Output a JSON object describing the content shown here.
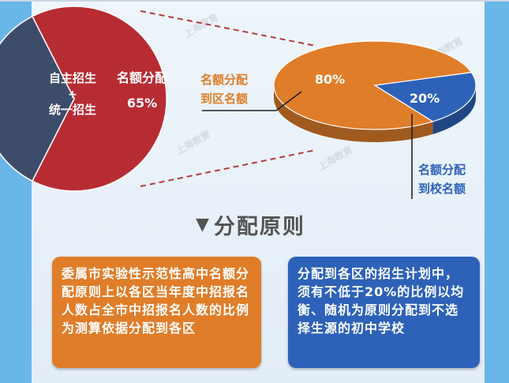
{
  "colors": {
    "background": "#e7f0f8",
    "frame_blue": "#69b6e8",
    "red_slice": "#b72c33",
    "navy_slice": "#3d4c6a",
    "orange": "#e07d29",
    "blue": "#2d62b8",
    "heading_gray": "#545454"
  },
  "chart_data": [
    {
      "type": "pie",
      "slices": [
        {
          "label": "名额分配",
          "value": 65,
          "value_label": "65%",
          "color": "#b72c33"
        },
        {
          "label": [
            "自主招生",
            "+",
            "统一招生"
          ],
          "value": 35,
          "color": "#3d4c6a"
        }
      ]
    },
    {
      "type": "pie",
      "slices": [
        {
          "label": "名额分配到区名额",
          "value": 80,
          "value_label": "80%",
          "color": "#e07d29"
        },
        {
          "label": "名额分配到校名额",
          "value": 20,
          "value_label": "20%",
          "color": "#2d62b8"
        }
      ]
    }
  ],
  "callouts": {
    "district_line1": "名额分配",
    "district_line2": "到区名额",
    "school_line1": "名额分配",
    "school_line2": "到校名额"
  },
  "section": {
    "icon": "down-triangle-icon",
    "triangle": "▼",
    "title": "分配原则"
  },
  "principles": {
    "left_text": "委属市实验性示范性高中名额分配原则上以各区当年度中招报名人数占全市中招报名人数的比例为测算依据分配到各区",
    "right_text": "分配到各区的招生计划中，须有不低于20%的比例以均衡、随机为原则分配到不选择生源的初中学校"
  },
  "watermark": "上海教育"
}
